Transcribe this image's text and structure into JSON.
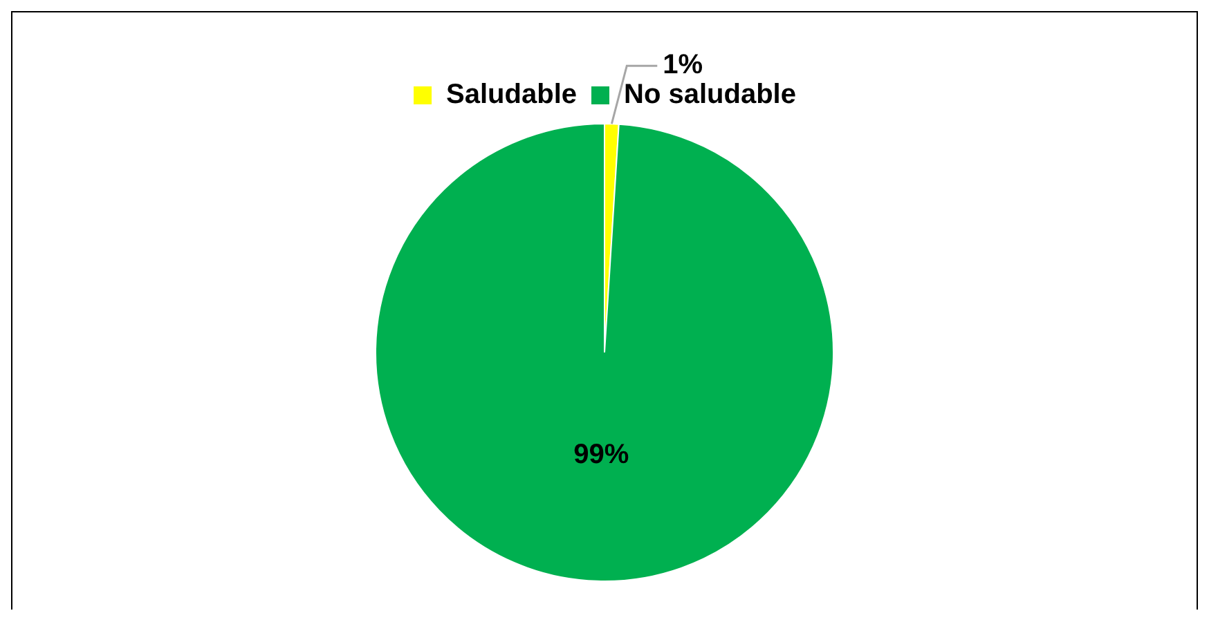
{
  "chart_data": {
    "type": "pie",
    "categories": [
      "Saludable",
      "No saludable"
    ],
    "values": [
      1,
      99
    ],
    "colors": [
      "#ffff00",
      "#00b050"
    ],
    "value_labels": [
      "1%",
      "99%"
    ],
    "legend": "top"
  }
}
